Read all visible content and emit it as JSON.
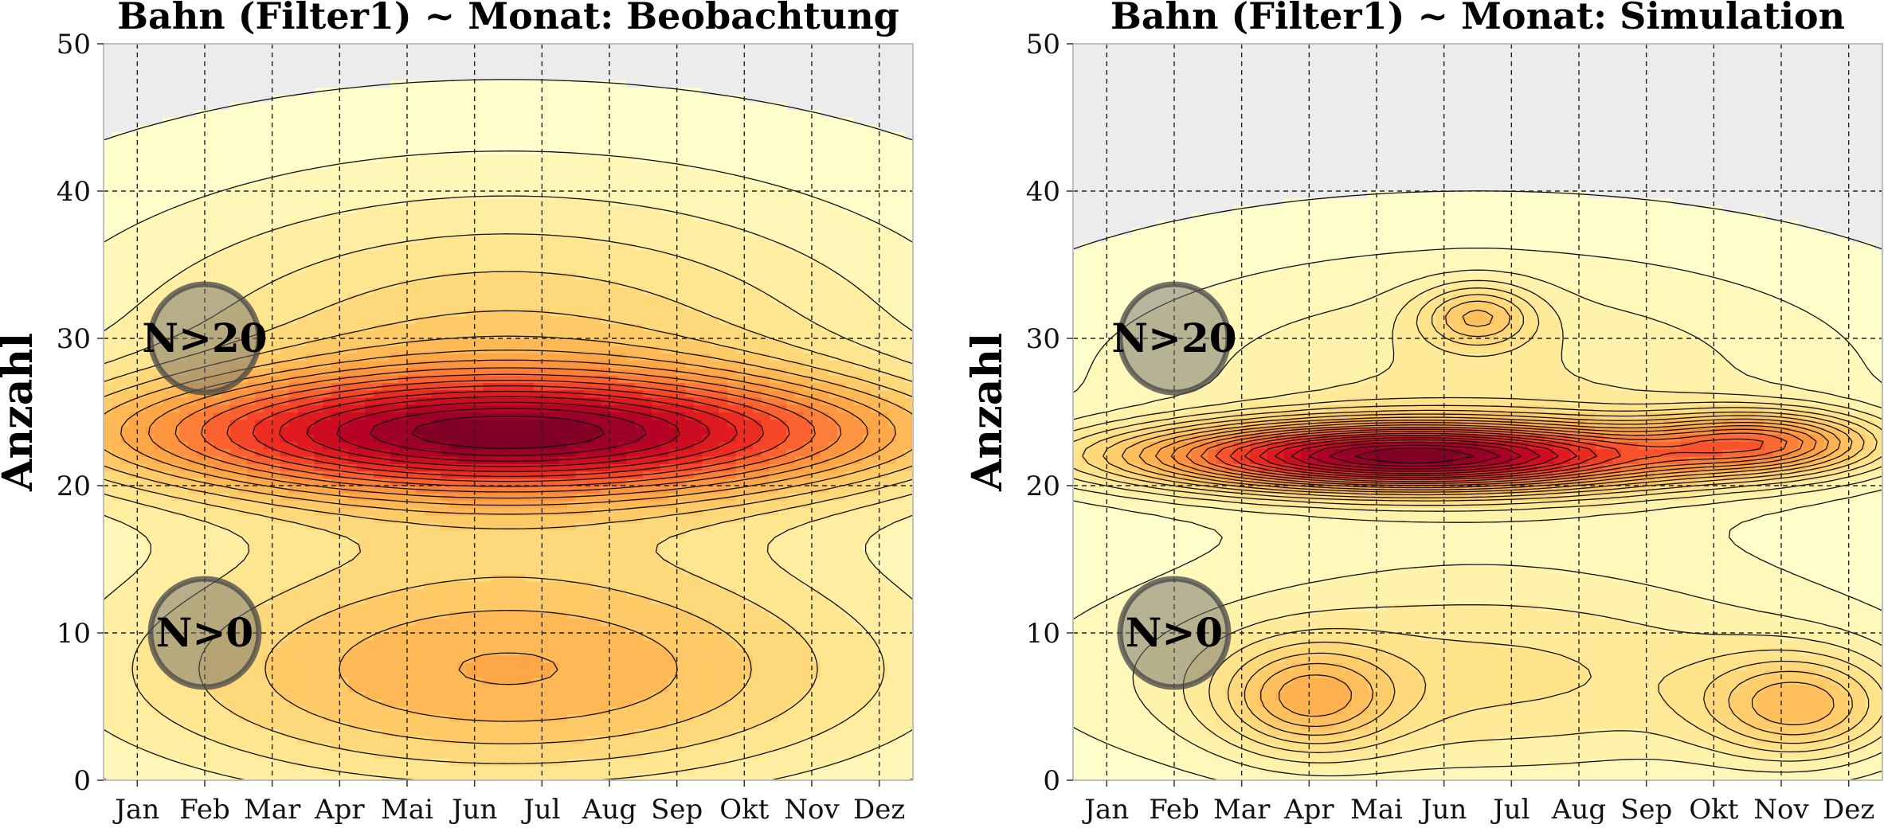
{
  "chart_data": [
    {
      "type": "contour",
      "title": "Bahn (Filter1) ~ Monat: Beobachtung",
      "xlabel": "",
      "ylabel": "Anzahl",
      "x_categories": [
        "Jan",
        "Feb",
        "Mar",
        "Apr",
        "Mai",
        "Jun",
        "Jul",
        "Aug",
        "Sep",
        "Okt",
        "Nov",
        "Dez"
      ],
      "xlim": [
        0.5,
        12.5
      ],
      "ylim": [
        0,
        50
      ],
      "yticks": [
        0,
        10,
        20,
        30,
        40,
        50
      ],
      "grid": true,
      "colormap": "YlOrRd",
      "badges": [
        {
          "label": "N>20",
          "month": 2,
          "value": 30
        },
        {
          "label": "N>0",
          "month": 2,
          "value": 10
        }
      ],
      "density_model": {
        "components": [
          {
            "mean_month": 6.5,
            "mean_value": 23.5,
            "sd_month": 4.2,
            "sd_value": 2.8,
            "weight": 1.0
          },
          {
            "mean_month": 6.5,
            "mean_value": 28,
            "sd_month": 4.5,
            "sd_value": 9,
            "weight": 0.45
          },
          {
            "mean_month": 6.5,
            "mean_value": 7,
            "sd_month": 4.5,
            "sd_value": 6,
            "weight": 0.55
          }
        ],
        "levels": 18
      }
    },
    {
      "type": "contour",
      "title": "Bahn (Filter1) ~ Monat: Simulation",
      "xlabel": "",
      "ylabel": "Anzahl",
      "x_categories": [
        "Jan",
        "Feb",
        "Mar",
        "Apr",
        "Mai",
        "Jun",
        "Jul",
        "Aug",
        "Sep",
        "Okt",
        "Nov",
        "Dez"
      ],
      "xlim": [
        0.5,
        12.5
      ],
      "ylim": [
        0,
        50
      ],
      "yticks": [
        0,
        10,
        20,
        30,
        40,
        50
      ],
      "grid": true,
      "colormap": "YlOrRd",
      "badges": [
        {
          "label": "N>20",
          "month": 2,
          "value": 30
        },
        {
          "label": "N>0",
          "month": 2,
          "value": 10
        }
      ],
      "density_model": {
        "components": [
          {
            "mean_month": 5.5,
            "mean_value": 22,
            "sd_month": 2.8,
            "sd_value": 1.6,
            "weight": 1.8
          },
          {
            "mean_month": 10.8,
            "mean_value": 23,
            "sd_month": 1.2,
            "sd_value": 1.5,
            "weight": 0.8
          },
          {
            "mean_month": 6.5,
            "mean_value": 31.5,
            "sd_month": 0.6,
            "sd_value": 1.5,
            "weight": 0.45
          },
          {
            "mean_month": 6.5,
            "mean_value": 27,
            "sd_month": 4.5,
            "sd_value": 7,
            "weight": 0.35
          },
          {
            "mean_month": 4.0,
            "mean_value": 5.5,
            "sd_month": 0.9,
            "sd_value": 2.5,
            "weight": 0.5
          },
          {
            "mean_month": 11.3,
            "mean_value": 5,
            "sd_month": 1.0,
            "sd_value": 2.5,
            "weight": 0.55
          },
          {
            "mean_month": 6.5,
            "mean_value": 7,
            "sd_month": 4.5,
            "sd_value": 5.5,
            "weight": 0.45
          }
        ],
        "levels": 22
      }
    }
  ]
}
